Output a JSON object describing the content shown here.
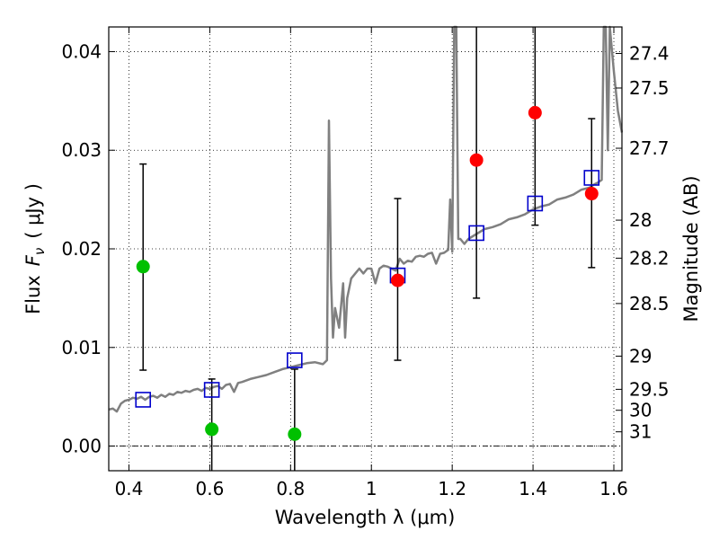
{
  "chart_data": {
    "type": "scatter",
    "xlabel": "Wavelength  λ (μm)",
    "ylabel": "Flux  F_ν  ( μJy )",
    "ylabel_parts": {
      "prefix": "Flux",
      "symbol": "F",
      "subscript": "ν",
      "unit": "( μJy )"
    },
    "y2label": "Magnitude (AB)",
    "xlim": [
      0.35,
      1.62
    ],
    "ylim": [
      -0.0025,
      0.0425
    ],
    "grid": true,
    "grid_style": "dotted",
    "x_ticks": [
      {
        "value": 0.4,
        "label": "0.4"
      },
      {
        "value": 0.6,
        "label": "0.6"
      },
      {
        "value": 0.8,
        "label": "0.8"
      },
      {
        "value": 1.0,
        "label": "1"
      },
      {
        "value": 1.2,
        "label": "1.2"
      },
      {
        "value": 1.4,
        "label": "1.4"
      },
      {
        "value": 1.6,
        "label": "1.6"
      }
    ],
    "y_ticks": [
      {
        "value": 0.0,
        "label": "0.00"
      },
      {
        "value": 0.01,
        "label": "0.01"
      },
      {
        "value": 0.02,
        "label": "0.02"
      },
      {
        "value": 0.03,
        "label": "0.03"
      },
      {
        "value": 0.04,
        "label": "0.04"
      }
    ],
    "y2_ticks": [
      {
        "value": 27.4,
        "label": "27.4"
      },
      {
        "value": 27.5,
        "label": "27.5"
      },
      {
        "value": 27.7,
        "label": "27.7"
      },
      {
        "value": 28.0,
        "label": "28"
      },
      {
        "value": 28.2,
        "label": "28.2"
      },
      {
        "value": 28.5,
        "label": "28.5"
      },
      {
        "value": 29.0,
        "label": "29"
      },
      {
        "value": 29.5,
        "label": "29.5"
      },
      {
        "value": 30.0,
        "label": "30"
      },
      {
        "value": 31.0,
        "label": "31"
      }
    ],
    "series": [
      {
        "kind": "line",
        "color": "#808080",
        "x": [
          0.35,
          0.36,
          0.37,
          0.38,
          0.39,
          0.4,
          0.41,
          0.42,
          0.43,
          0.44,
          0.45,
          0.46,
          0.47,
          0.48,
          0.49,
          0.5,
          0.51,
          0.52,
          0.53,
          0.54,
          0.55,
          0.56,
          0.57,
          0.58,
          0.59,
          0.6,
          0.61,
          0.62,
          0.63,
          0.64,
          0.65,
          0.66,
          0.67,
          0.68,
          0.7,
          0.72,
          0.74,
          0.76,
          0.78,
          0.8,
          0.82,
          0.84,
          0.86,
          0.88,
          0.89,
          0.895,
          0.9,
          0.905,
          0.91,
          0.92,
          0.93,
          0.935,
          0.94,
          0.95,
          0.96,
          0.97,
          0.98,
          0.99,
          1.0,
          1.01,
          1.02,
          1.03,
          1.04,
          1.05,
          1.06,
          1.07,
          1.08,
          1.09,
          1.1,
          1.11,
          1.12,
          1.13,
          1.14,
          1.15,
          1.16,
          1.17,
          1.18,
          1.19,
          1.195,
          1.2,
          1.205,
          1.21,
          1.215,
          1.22,
          1.23,
          1.24,
          1.26,
          1.28,
          1.3,
          1.32,
          1.34,
          1.36,
          1.38,
          1.4,
          1.42,
          1.44,
          1.46,
          1.48,
          1.5,
          1.52,
          1.54,
          1.55,
          1.56,
          1.57,
          1.575,
          1.58,
          1.585,
          1.59,
          1.6,
          1.61,
          1.62
        ],
        "y": [
          0.0037,
          0.0038,
          0.0035,
          0.0043,
          0.0046,
          0.0047,
          0.0049,
          0.0048,
          0.005,
          0.0047,
          0.005,
          0.0051,
          0.0049,
          0.0052,
          0.005,
          0.0053,
          0.0052,
          0.0055,
          0.0054,
          0.0056,
          0.0055,
          0.0057,
          0.0058,
          0.0056,
          0.0059,
          0.0058,
          0.006,
          0.0061,
          0.0058,
          0.0062,
          0.0063,
          0.0055,
          0.0064,
          0.0065,
          0.0068,
          0.007,
          0.0072,
          0.0075,
          0.0078,
          0.008,
          0.0082,
          0.0084,
          0.0085,
          0.0083,
          0.0087,
          0.033,
          0.017,
          0.011,
          0.014,
          0.012,
          0.0165,
          0.011,
          0.015,
          0.017,
          0.0175,
          0.018,
          0.0175,
          0.018,
          0.018,
          0.0165,
          0.018,
          0.0183,
          0.0182,
          0.018,
          0.0178,
          0.019,
          0.0185,
          0.0188,
          0.0187,
          0.0192,
          0.0193,
          0.0192,
          0.0195,
          0.0196,
          0.0185,
          0.0195,
          0.0196,
          0.0199,
          0.025,
          0.0197,
          0.0425,
          0.0425,
          0.021,
          0.021,
          0.0205,
          0.021,
          0.0215,
          0.022,
          0.0222,
          0.0225,
          0.023,
          0.0232,
          0.0235,
          0.024,
          0.0243,
          0.0245,
          0.025,
          0.0252,
          0.0255,
          0.026,
          0.0262,
          0.0265,
          0.0267,
          0.027,
          0.0425,
          0.0425,
          0.03,
          0.0425,
          0.038,
          0.034,
          0.0318
        ]
      },
      {
        "kind": "squares",
        "color": "#0000cc",
        "x": [
          0.435,
          0.605,
          0.81,
          1.065,
          1.26,
          1.405,
          1.545
        ],
        "y": [
          0.0047,
          0.0057,
          0.0087,
          0.0173,
          0.0216,
          0.0246,
          0.0272
        ]
      },
      {
        "kind": "dots",
        "color": "#00c000",
        "x": [
          0.435,
          0.605,
          0.81
        ],
        "y": [
          0.0182,
          0.0017,
          0.0012
        ]
      },
      {
        "kind": "dots",
        "color": "#ff0000",
        "x": [
          1.065,
          1.26,
          1.405,
          1.545
        ],
        "y": [
          0.0168,
          0.029,
          0.0338,
          0.0256
        ]
      }
    ],
    "error_bars": [
      {
        "x": 0.435,
        "low": 0.0077,
        "high": 0.0286
      },
      {
        "x": 0.605,
        "low": -0.0025,
        "high": 0.0068
      },
      {
        "x": 0.81,
        "low": -0.0025,
        "high": 0.0078
      },
      {
        "x": 1.065,
        "low": 0.0087,
        "high": 0.0251
      },
      {
        "x": 1.26,
        "low": 0.015,
        "high": 0.0425
      },
      {
        "x": 1.405,
        "low": 0.0224,
        "high": 0.0425
      },
      {
        "x": 1.545,
        "low": 0.0181,
        "high": 0.0332
      }
    ]
  }
}
